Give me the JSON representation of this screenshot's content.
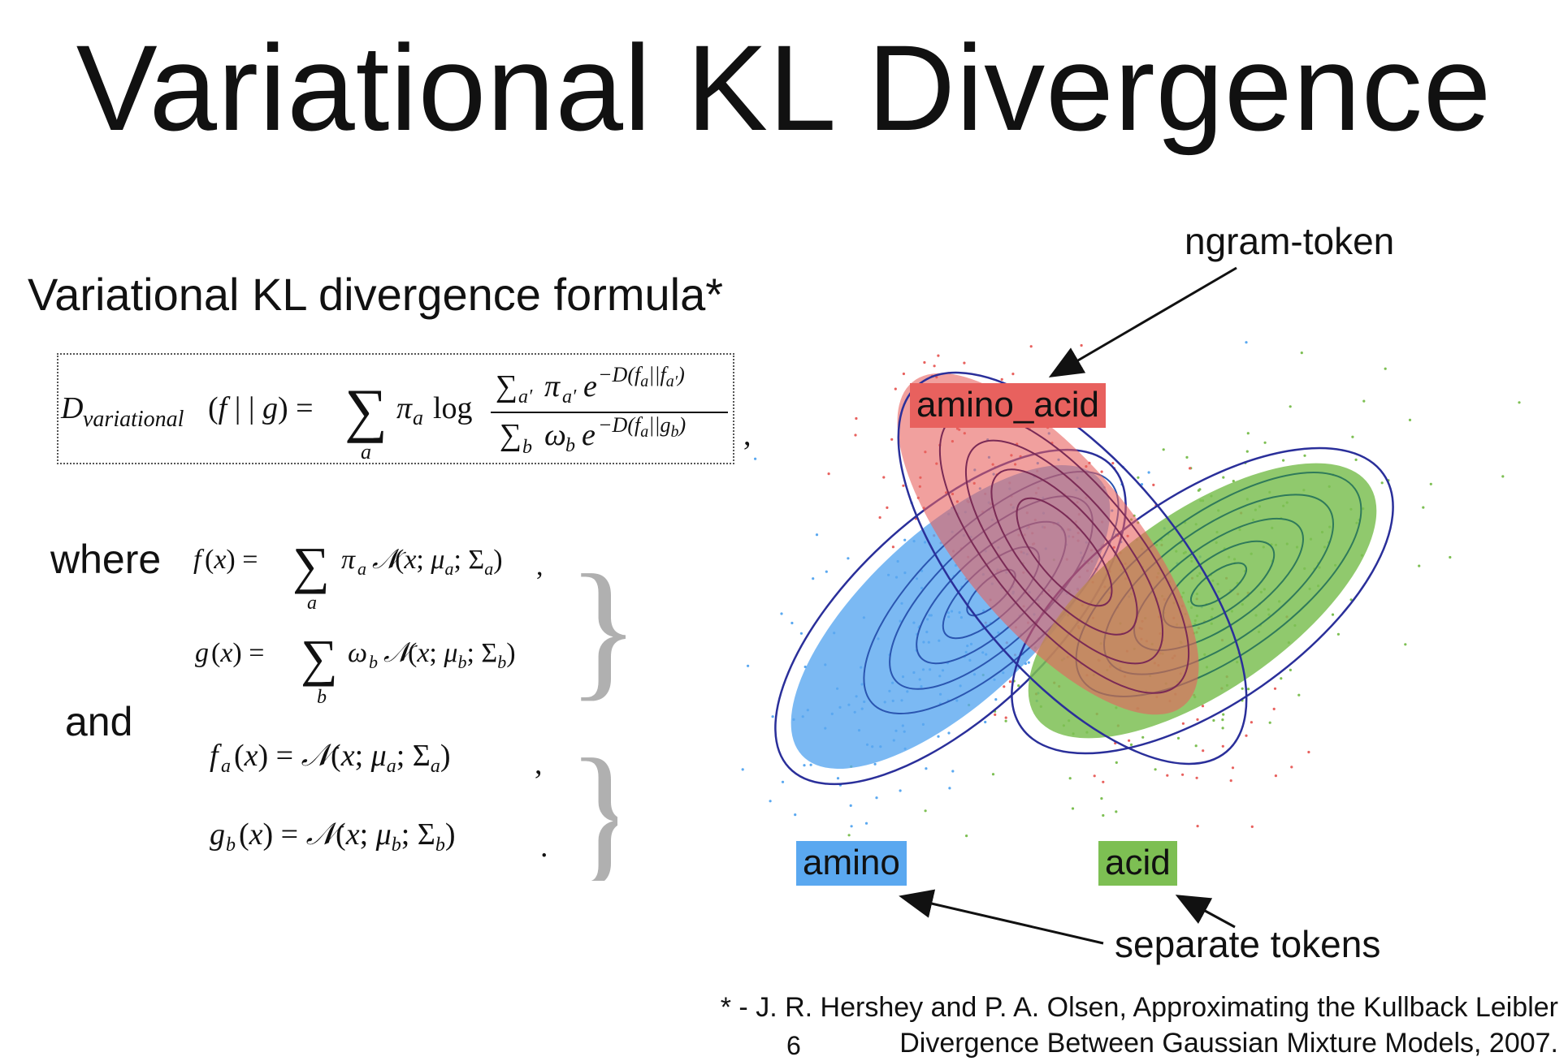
{
  "slide": {
    "title": "Variational KL Divergence",
    "subtitle": "Variational KL divergence formula*",
    "where_label": "where",
    "and_label": "and",
    "page_number": "6"
  },
  "diagram": {
    "labels": {
      "amino_acid": "amino_acid",
      "amino": "amino",
      "acid": "acid",
      "ngram_token": "ngram-token",
      "separate_tokens": "separate tokens"
    },
    "colors": {
      "amino_acid": "#e8615e",
      "amino": "#5aa8f0",
      "acid": "#7dbf53",
      "contour_outline": "#2a2f9a"
    }
  },
  "footnote": {
    "line1": "* - J. R. Hershey and P. A. Olsen, Approximating the Kullback Leibler",
    "line2": "Divergence Between Gaussian Mixture Models, 2007."
  }
}
